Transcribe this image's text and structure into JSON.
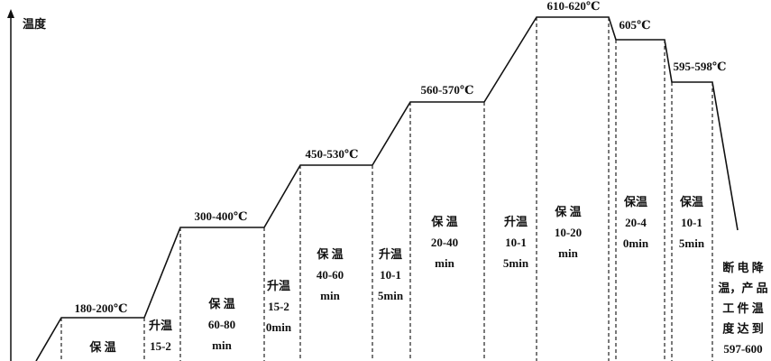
{
  "axis_label": "温度",
  "temperatures": [
    "180-200℃",
    "300-400℃",
    "450-530℃",
    "560-570℃",
    "610-620℃",
    "605℃",
    "595-598℃"
  ],
  "notes": [
    [
      "保 温"
    ],
    [
      "升温",
      "15-2"
    ],
    [
      "保 温",
      "60-80",
      "min"
    ],
    [
      "升温",
      "15-2",
      "0min"
    ],
    [
      "保 温",
      "40-60",
      "min"
    ],
    [
      "升温",
      "10-1",
      "5min"
    ],
    [
      "保 温",
      "20-40",
      "min"
    ],
    [
      "升温",
      "10-1",
      "5min"
    ],
    [
      "保 温",
      "10-20",
      "min"
    ],
    [
      "保温",
      "20-4",
      "0min"
    ],
    [
      "保温",
      "10-1",
      "5min"
    ],
    [
      "断 电 降",
      "温，产 品",
      "工 件 温",
      "度 达 到",
      "597-600"
    ]
  ]
}
